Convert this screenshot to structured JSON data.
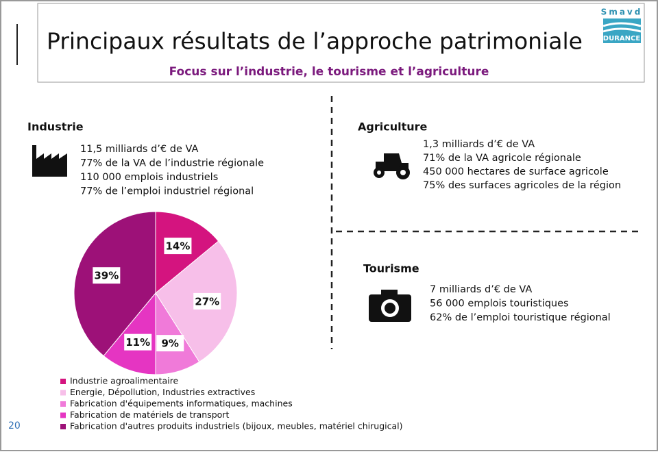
{
  "header": {
    "title": "Principaux résultats de l’approche patrimoniale",
    "subtitle": "Focus sur l’industrie, le tourisme et l’agriculture",
    "logo": [
      "Smavd",
      "DURANCE"
    ]
  },
  "sections": {
    "industrie": {
      "heading": "Industrie",
      "lines": [
        "11,5 milliards d’€ de VA",
        "77% de la VA de l’industrie régionale",
        "110 000 emplois industriels",
        "77% de l’emploi industriel régional"
      ]
    },
    "agriculture": {
      "heading": "Agriculture",
      "lines": [
        "1,3 milliards d’€ de VA",
        "71% de la VA agricole régionale",
        "450 000 hectares de surface agricole",
        "75% des surfaces agricoles de la région"
      ]
    },
    "tourisme": {
      "heading": "Tourisme",
      "lines": [
        "7 milliards d’€ de VA",
        "56 000 emplois touristiques",
        "62% de l’emploi touristique régional"
      ]
    }
  },
  "page_number": "20",
  "chart_data": {
    "type": "pie",
    "categories": [
      "Industrie agroalimentaire",
      "Energie, Dépollution, Industries extractives",
      "Fabrication d'équipements informatiques, machines",
      "Fabrication de matériels de transport",
      "Fabrication d'autres produits industriels (bijoux, meubles, matériel chirugical)"
    ],
    "values": [
      14,
      27,
      9,
      11,
      39
    ],
    "value_labels": [
      "14%",
      "27%",
      "9%",
      "11%",
      "39%"
    ],
    "colors": [
      "#d4147f",
      "#f7bfe9",
      "#f07ad9",
      "#e535c2",
      "#9d1178"
    ]
  }
}
